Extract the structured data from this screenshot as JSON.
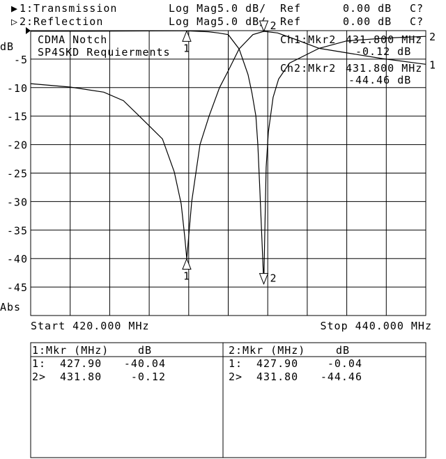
{
  "header": {
    "traces": [
      {
        "indicator": "▶",
        "label": "1:Transmission",
        "format": "Log Mag",
        "scale": "5.0 dB/",
        "ref_label": "Ref",
        "ref_value": "0.00 dB",
        "cal_status": "C?"
      },
      {
        "indicator": "▷",
        "label": "2:Reflection",
        "format": "Log Mag",
        "scale": "5.0 dB/",
        "ref_label": "Ref",
        "ref_value": "0.00 dB",
        "cal_status": "C?"
      }
    ]
  },
  "annotations": {
    "title_line1": "CDMA Notch",
    "title_line2": "SP4SKD Requierments"
  },
  "marker_readouts": [
    {
      "label": "Ch1:Mkr2",
      "freq": "431.800 MHz",
      "value": "-0.12 dB"
    },
    {
      "label": "Ch2:Mkr2",
      "freq": "431.800 MHz",
      "value": "-44.46 dB"
    }
  ],
  "axis": {
    "y_unit": "dB",
    "y_mode": "Abs",
    "start": "Start 420.000 MHz",
    "stop": "Stop 440.000 MHz"
  },
  "marker_table": [
    {
      "header_mkr": "1:Mkr (MHz)",
      "header_db": "dB",
      "rows": [
        [
          "1:",
          "427.90",
          "-40.04"
        ],
        [
          "2>",
          "431.80",
          "-0.12"
        ]
      ]
    },
    {
      "header_mkr": "2:Mkr (MHz)",
      "header_db": "dB",
      "rows": [
        [
          "1:",
          "427.90",
          "-0.04"
        ],
        [
          "2>",
          "431.80",
          "-44.46"
        ]
      ]
    }
  ],
  "chart_data": {
    "type": "line",
    "xlabel": "",
    "ylabel": "dB",
    "xlim": [
      420,
      440
    ],
    "ylim": [
      -50,
      0
    ],
    "x_divisions": 10,
    "y_ticks": [
      "-5",
      "-10",
      "-15",
      "-20",
      "-25",
      "-30",
      "-35",
      "-40",
      "-45"
    ],
    "y_tick_values": [
      -5,
      -10,
      -15,
      -20,
      -25,
      -30,
      -35,
      -40,
      -45
    ],
    "grid": true,
    "colors": {
      "trace": "#000000",
      "background": "#ffffff"
    },
    "series": [
      {
        "name": "Transmission",
        "id": "1",
        "x": [
          420,
          422,
          423.7,
          424.7,
          425.5,
          426.67,
          427.27,
          427.62,
          427.8,
          427.9,
          428.15,
          428.57,
          429.03,
          429.56,
          429.98,
          430.55,
          431.25,
          431.8,
          432.5,
          433.3,
          434.6,
          436,
          437.8,
          440
        ],
        "y": [
          -9.3,
          -9.9,
          -10.8,
          -12.3,
          -15,
          -19,
          -24.8,
          -30.4,
          -36.2,
          -40.04,
          -30,
          -20,
          -15,
          -10,
          -7.2,
          -3.2,
          -0.7,
          -0.12,
          -0.4,
          -1.4,
          -3.1,
          -3.9,
          -4.9,
          -5.9
        ],
        "markers": [
          {
            "id": "1",
            "x": 427.9,
            "y": -40.04,
            "active": false
          },
          {
            "id": "2",
            "x": 431.8,
            "y": -0.12,
            "active": true
          }
        ]
      },
      {
        "name": "Reflection",
        "id": "2",
        "x": [
          420,
          424,
          426,
          427.9,
          429,
          429.5,
          430,
          430.55,
          431.0,
          431.2,
          431.4,
          431.5,
          431.6,
          431.8,
          431.92,
          432.03,
          432.27,
          432.55,
          433.1,
          434.6,
          436,
          438,
          440
        ],
        "y": [
          -0.1,
          -0.08,
          -0.05,
          -0.04,
          -0.2,
          -0.4,
          -0.7,
          -3.2,
          -7.7,
          -10.9,
          -15,
          -20,
          -28,
          -44.46,
          -24,
          -17.8,
          -11.7,
          -8.5,
          -5.7,
          -3.1,
          -1.8,
          -1.3,
          -1.0
        ],
        "markers": [
          {
            "id": "1",
            "x": 427.9,
            "y": -0.04,
            "active": false
          },
          {
            "id": "2",
            "x": 431.8,
            "y": -44.46,
            "active": true
          }
        ]
      }
    ]
  }
}
